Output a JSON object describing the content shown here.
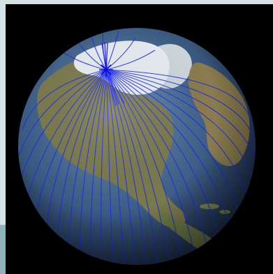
{
  "image": {
    "subject": "globe-with-field-lines",
    "colors": {
      "background": "#000000",
      "border_strip": "#d5e2e6",
      "ocean": "#3b5a83",
      "land": "#7a7a4a",
      "ice": "#e8eef3",
      "field_lines": "#1f2ee6",
      "field_lines_red": "#c63a2a"
    },
    "icons": {
      "pole_marker": "star-icon"
    }
  }
}
